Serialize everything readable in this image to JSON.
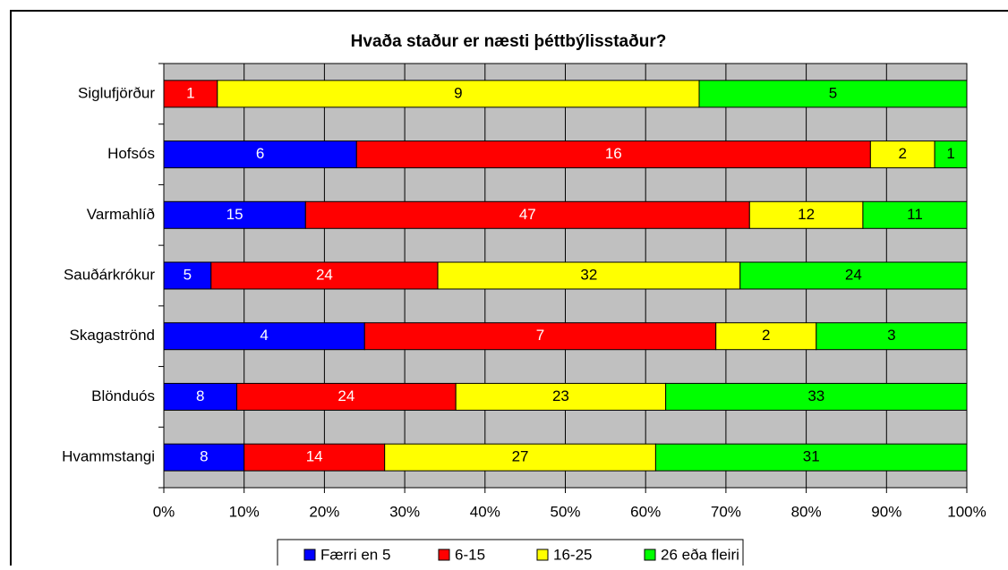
{
  "chart_data": {
    "type": "bar",
    "orientation": "horizontal",
    "stack": "percent",
    "title": "Hvaða staður er næsti þéttbýlisstaður?",
    "categories": [
      "Siglufjörður",
      "Hofsós",
      "Varmahlíð",
      "Sauðárkrókur",
      "Skagaströnd",
      "Blönduós",
      "Hvammstangi"
    ],
    "series": [
      {
        "name": "Færri en 5",
        "color": "#0000ff",
        "label_color": "#ffffff",
        "values": [
          null,
          6,
          15,
          5,
          4,
          8,
          8
        ]
      },
      {
        "name": "6-15",
        "color": "#ff0000",
        "label_color": "#ffffff",
        "values": [
          1,
          16,
          47,
          24,
          7,
          24,
          14
        ]
      },
      {
        "name": "16-25",
        "color": "#ffff00",
        "label_color": "#000000",
        "values": [
          9,
          2,
          12,
          32,
          2,
          23,
          27
        ]
      },
      {
        "name": "26 eða fleiri",
        "color": "#00ff00",
        "label_color": "#000000",
        "values": [
          5,
          1,
          11,
          24,
          3,
          33,
          31
        ]
      }
    ],
    "xlim": [
      0,
      100
    ],
    "xticks": [
      {
        "value": 0,
        "label": "0%"
      },
      {
        "value": 10,
        "label": "10%"
      },
      {
        "value": 20,
        "label": "20%"
      },
      {
        "value": 30,
        "label": "30%"
      },
      {
        "value": 40,
        "label": "40%"
      },
      {
        "value": 50,
        "label": "50%"
      },
      {
        "value": 60,
        "label": "60%"
      },
      {
        "value": 70,
        "label": "70%"
      },
      {
        "value": 80,
        "label": "80%"
      },
      {
        "value": 90,
        "label": "90%"
      },
      {
        "value": 100,
        "label": "100%"
      }
    ],
    "grid": true,
    "legend": "bottom"
  }
}
